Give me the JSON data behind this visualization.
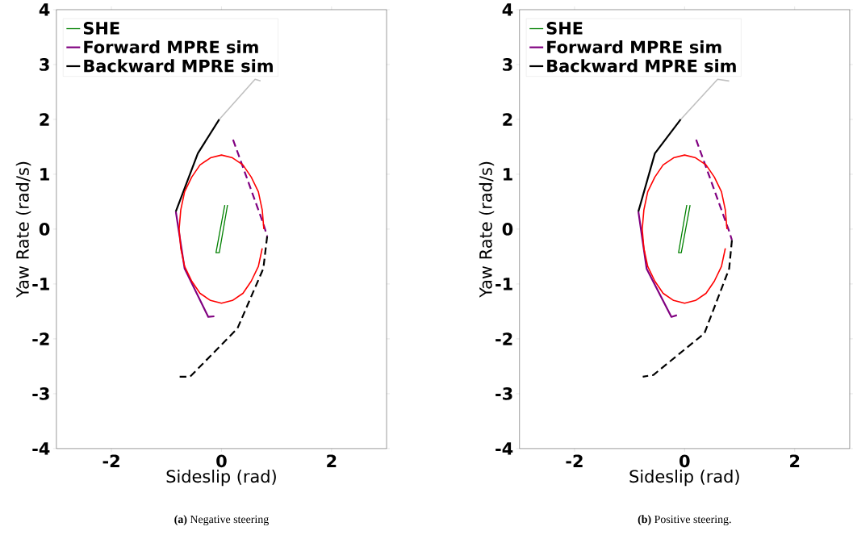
{
  "chart_data": [
    {
      "type": "line",
      "xlabel": "Sideslip (rad)",
      "ylabel": "Yaw Rate (rad/s)",
      "xlim": [
        -3,
        3
      ],
      "ylim": [
        -4,
        4
      ],
      "xticks": [
        -2,
        0,
        2
      ],
      "yticks": [
        -4,
        -3,
        -2,
        -1,
        0,
        1,
        2,
        3,
        4
      ],
      "grid": false,
      "legend": "top left",
      "annotations": [
        "**(a)** Negative steering"
      ],
      "series": [
        {
          "name": "SHE",
          "color": "#008000",
          "x": [
            0.11,
            -0.04,
            -0.1,
            0.06
          ],
          "values": [
            0.44,
            -0.43,
            -0.43,
            0.44
          ],
          "line_style": "solid"
        },
        {
          "name": "Forward MPRE sim",
          "color": "#800080",
          "x": [
            -0.83,
            -0.67,
            -0.24,
            -0.13
          ],
          "values": [
            0.32,
            -0.72,
            -1.6,
            -1.59
          ],
          "line_style": "solid"
        },
        {
          "color": "#800080",
          "x": [
            0.21,
            0.76,
            0.83
          ],
          "values": [
            1.63,
            0.1,
            -0.13
          ],
          "line_style": "dashed"
        },
        {
          "name": "Backward MPRE sim",
          "color": "#000000",
          "x": [
            -0.83,
            -0.43,
            -0.04
          ],
          "values": [
            0.32,
            1.38,
            2.0
          ],
          "line_style": "solid"
        },
        {
          "color": "#000000",
          "x": [
            0.83,
            0.76,
            0.29,
            -0.57,
            -0.76
          ],
          "values": [
            -0.13,
            -0.72,
            -1.81,
            -2.69,
            -2.69
          ],
          "line_style": "dashed"
        },
        {
          "color": "#c0c0c0",
          "x": [
            -0.04,
            0.61,
            0.71
          ],
          "values": [
            2.0,
            2.73,
            2.7
          ],
          "line_style": "solid"
        },
        {
          "color": "#ff0000",
          "x": [
            0.77,
            0.74,
            0.67,
            0.54,
            0.39,
            0.2,
            0,
            -0.2,
            -0.39,
            -0.54,
            -0.67,
            -0.74,
            -0.77,
            -0.74,
            -0.67,
            -0.54,
            -0.39,
            -0.2,
            0,
            0.2,
            0.39,
            0.54,
            0.67,
            0.74
          ],
          "values": [
            0,
            0.35,
            0.68,
            0.95,
            1.17,
            1.3,
            1.35,
            1.3,
            1.17,
            0.95,
            0.68,
            0.35,
            0,
            -0.35,
            -0.68,
            -0.95,
            -1.17,
            -1.3,
            -1.35,
            -1.3,
            -1.17,
            -0.95,
            -0.68,
            -0.35
          ],
          "line_style": "solid"
        }
      ]
    },
    {
      "type": "line",
      "xlabel": "Sideslip (rad)",
      "ylabel": "Yaw Rate (rad/s)",
      "xlim": [
        -3,
        3
      ],
      "ylim": [
        -4,
        4
      ],
      "xticks": [
        -2,
        0,
        2
      ],
      "yticks": [
        -4,
        -3,
        -2,
        -1,
        0,
        1,
        2,
        3,
        4
      ],
      "grid": false,
      "legend": "top left",
      "annotations": [
        "**(b)** Positive steering."
      ],
      "series": [
        {
          "name": "SHE",
          "color": "#008000",
          "x": [
            0.1,
            -0.06,
            -0.11,
            0.04
          ],
          "values": [
            0.44,
            -0.43,
            -0.43,
            0.44
          ],
          "line_style": "solid"
        },
        {
          "name": "Forward MPRE sim",
          "color": "#800080",
          "x": [
            -0.84,
            -0.69,
            -0.24,
            -0.14
          ],
          "values": [
            0.32,
            -0.72,
            -1.6,
            -1.57
          ],
          "line_style": "solid"
        },
        {
          "color": "#800080",
          "x": [
            0.21,
            0.81,
            0.86
          ],
          "values": [
            1.63,
            -0.04,
            -0.2
          ],
          "line_style": "dashed"
        },
        {
          "name": "Backward MPRE sim",
          "color": "#000000",
          "x": [
            -0.84,
            -0.54,
            -0.07
          ],
          "values": [
            0.32,
            1.38,
            2.0
          ],
          "line_style": "solid"
        },
        {
          "color": "#000000",
          "x": [
            0.86,
            0.81,
            0.36,
            -0.57,
            -0.76
          ],
          "values": [
            -0.2,
            -0.72,
            -1.9,
            -2.66,
            -2.69
          ],
          "line_style": "dashed"
        },
        {
          "color": "#c0c0c0",
          "x": [
            -0.07,
            0.6,
            0.81
          ],
          "values": [
            2.0,
            2.73,
            2.7
          ],
          "line_style": "solid"
        },
        {
          "color": "#ff0000",
          "x": [
            0.77,
            0.74,
            0.67,
            0.54,
            0.39,
            0.2,
            0,
            -0.2,
            -0.39,
            -0.54,
            -0.67,
            -0.74,
            -0.77,
            -0.74,
            -0.67,
            -0.54,
            -0.39,
            -0.2,
            0,
            0.2,
            0.39,
            0.54,
            0.67,
            0.74
          ],
          "values": [
            0,
            0.35,
            0.68,
            0.95,
            1.17,
            1.3,
            1.35,
            1.3,
            1.17,
            0.95,
            0.68,
            0.35,
            0,
            -0.35,
            -0.68,
            -0.95,
            -1.17,
            -1.3,
            -1.35,
            -1.3,
            -1.17,
            -0.95,
            -0.68,
            -0.35
          ],
          "line_style": "solid"
        }
      ]
    }
  ]
}
